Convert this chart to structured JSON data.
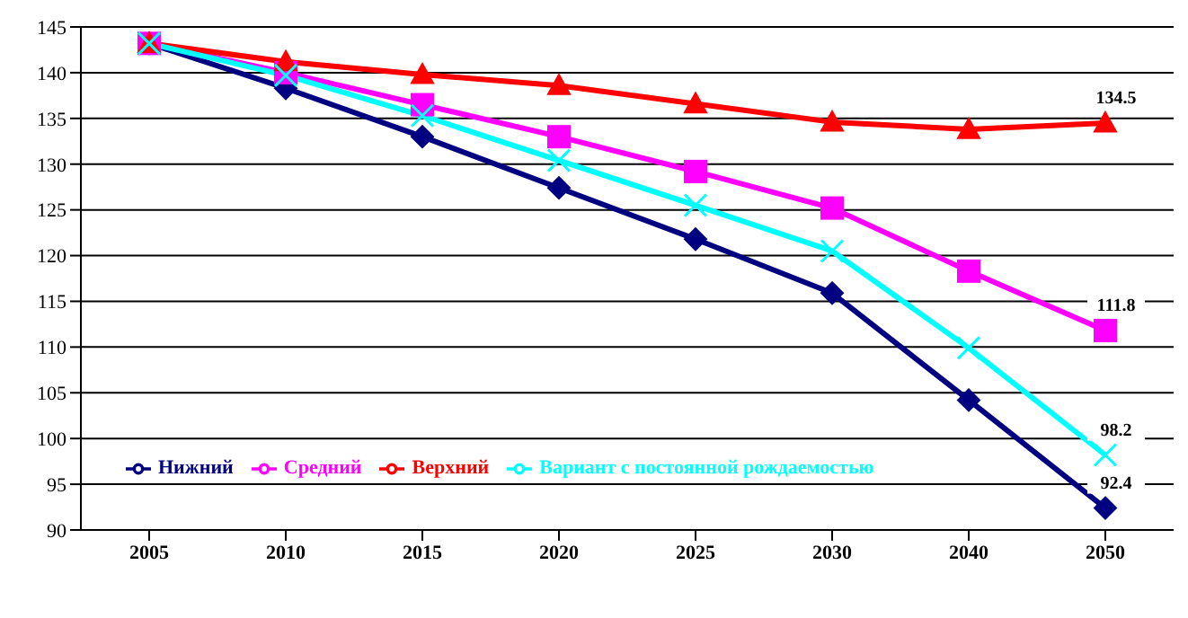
{
  "chart_data": {
    "type": "line",
    "categories": [
      "2005",
      "2010",
      "2015",
      "2020",
      "2025",
      "2030",
      "2040",
      "2050"
    ],
    "series": [
      {
        "name": "Нижний",
        "color": "#000080",
        "marker": "diamond",
        "values": [
          143.2,
          138.3,
          133.0,
          127.4,
          121.8,
          115.9,
          104.2,
          92.4
        ],
        "value_labels": [
          null,
          null,
          null,
          null,
          null,
          null,
          null,
          "92.4"
        ]
      },
      {
        "name": "Средний",
        "color": "#ff00ff",
        "marker": "square",
        "values": [
          143.2,
          140.0,
          136.5,
          133.0,
          129.2,
          125.2,
          118.3,
          111.8
        ],
        "value_labels": [
          null,
          null,
          null,
          null,
          null,
          null,
          null,
          "111.8"
        ]
      },
      {
        "name": "Верхний",
        "color": "#ff0000",
        "marker": "triangle",
        "values": [
          143.2,
          141.2,
          139.8,
          138.6,
          136.6,
          134.6,
          133.8,
          134.5
        ],
        "value_labels": [
          null,
          null,
          null,
          null,
          null,
          null,
          null,
          "134.5"
        ]
      },
      {
        "name": "Вариант с постоянной рождаемостью",
        "color": "#00ffff",
        "marker": "cross",
        "values": [
          143.2,
          139.7,
          135.3,
          130.4,
          125.5,
          120.5,
          109.9,
          98.2
        ],
        "value_labels": [
          null,
          null,
          null,
          null,
          null,
          null,
          null,
          "98.2"
        ]
      }
    ],
    "ylim": [
      90,
      145
    ],
    "yticks": [
      90,
      95,
      100,
      105,
      110,
      115,
      120,
      125,
      130,
      135,
      140,
      145
    ],
    "grid": "y",
    "legend": "bottom left"
  }
}
